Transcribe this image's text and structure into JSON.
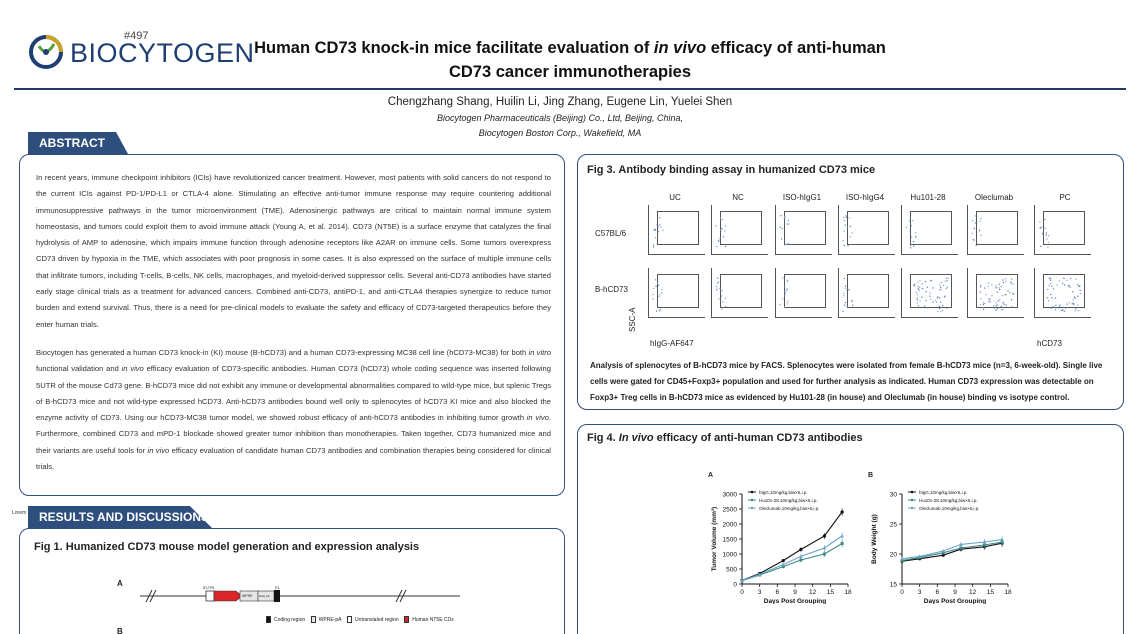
{
  "header": {
    "poster_number": "#497",
    "logo_text": "BIOCYTOGEN",
    "title_line1_a": "Human CD73 knock-in mice facilitate evaluation of ",
    "title_line1_italic": "in vivo",
    "title_line1_b": " efficacy of anti-human",
    "title_line2": "CD73 cancer immunotherapies",
    "authors": "Chengzhang Shang, Huilin Li, Jing Zhang, Eugene Lin, Yuelei Shen",
    "affiliation1": "Biocytogen Pharmaceuticals (Beijing) Co., Ltd, Beijing, China,",
    "affiliation2": "Biocytogen Boston Corp., Wakefield, MA"
  },
  "abstract": {
    "tab_label": "ABSTRACT",
    "p1_a": "In recent years, immune checkpoint inhibitors (ICIs) have revolutionized cancer treatment. However, most patients with solid cancers do not respond to the current ICIs against PD-1/PD-L1 or CTLA-4 alone. Stimulating an effective anti-tumor immune response may require countering additional immunosuppressive pathways in the tumor microenvironment (TME). Adenosinergic pathways are critical to maintain normal immune system homeostasis, and tumors could exploit them to avoid immune attack (Young A, et al. 2014). CD73 (NT5E) is a surface enzyme that catalyzes the final hydrolysis of AMP to adenosine, which impairs immune function through adenosine receptors like A2AR on immune cells. Some tumors overexpress CD73 driven by hypoxia in the TME, which associates with poor prognosis in some cases. It is also expressed on the surface of multiple immune cells that infiltrate tumors, including T-cells, B-cells, NK cells, macrophages, and myeloid-derived suppressor cells. Several anti-CD73 antibodies have started early stage clinical trials as a treatment for advanced cancers. Combined anti-CD73, antiPD-1, and anti-CTLA4 therapies synergize to reduce tumor burden and extend survival. Thus, there is a need for pre-clinical models to evaluate the safety and efficacy of CD73-targeted therapeutics before they enter human trials.",
    "p2_a": "Biocytogen has generated a human CD73 knock-in (KI) mouse (B-hCD73) and a human CD73-expressing MC38 cell line (hCD73-MC38) for both ",
    "p2_i1": "in vitro",
    "p2_b": " functional validation and ",
    "p2_i2": "in vivo",
    "p2_c": " efficacy evaluation of CD73-specific antibodies. Human CD73 (hCD73) whole coding sequence was inserted following 5UTR of the mouse Cd73 gene. B-hCD73 mice did not exhibit any immune or developmental abnormalities compared to wild-type mice, but splenic Tregs of B-hCD73 mice and not wild-type expressed hCD73. Anti-hCD73 antibodies bound well only to splenocytes of hCD73 KI mice and also blocked the enzyme activity of CD73. Using our hCD73-MC38 tumor model, we showed robust efficacy of anti-hCD73 antibodies in inhibiting tumor growth ",
    "p2_i3": "in vivo",
    "p2_d": ". Furthermore, combined CD73 and mPD-1 blockade showed greater tumor inhibition than monotherapies. Taken together, CD73 humanized mice and their variants are useful tools for ",
    "p2_i4": "in vivo",
    "p2_e": " efficacy evaluation of candidate human CD73 antibodies and combination therapies being considered for clinical trials."
  },
  "results": {
    "tab_label": "RESULTS AND DISCUSSIONS",
    "stray_text": "Lorem"
  },
  "fig1": {
    "title": "Fig 1. Humanized CD73 mouse model generation and expression analysis",
    "panel_a": "A",
    "panel_b": "B",
    "labels": {
      "utr": "5'UTR",
      "e1": "E1",
      "wpre": "WPRE",
      "hgh": "hGH pA"
    },
    "legend": [
      "Coding region",
      "WPRE-pA",
      "Untranslated region",
      "Human NT5E CDs"
    ]
  },
  "fig3": {
    "title": "Fig 3. Antibody binding assay in humanized CD73 mice",
    "columns": [
      "UC",
      "NC",
      "ISO-hIgG1",
      "ISO-hIgG4",
      "Hu101-28",
      "Oleclumab",
      "PC"
    ],
    "rows": [
      "C57BL/6",
      "B-hCD73"
    ],
    "y_axis": "SSC-A",
    "x_axis_left": "hIgG-AF647",
    "x_axis_right": "hCD73",
    "caption": "Analysis of splenocytes of B-hCD73 mice by FACS. Splenocytes were isolated from female B-hCD73 mice (n=3, 6-week-old). Single live cells were gated for CD45+Foxp3+ population and used for further analysis as indicated. Human CD73 expression was detectable on Foxp3+ Treg cells in B-hCD73 mice as evidenced by Hu101-28 (in house) and Oleclumab (in house) binding vs isotype control."
  },
  "fig4": {
    "title_a": "Fig 4. ",
    "title_italic": "In vivo",
    "title_b": " efficacy of anti-human CD73 antibodies",
    "colors": {
      "higg": "#111111",
      "hu101": "#3d8a7e",
      "olec": "#6aa3c9"
    }
  },
  "chart_data": [
    {
      "type": "line",
      "panel": "A",
      "xlabel": "Days Post Grouping",
      "ylabel": "Tumor Volume (mm³)",
      "x": [
        0,
        3,
        7,
        10,
        14,
        17
      ],
      "xticks": [
        0,
        3,
        6,
        9,
        12,
        15,
        18
      ],
      "yticks": [
        0,
        500,
        1000,
        1500,
        2000,
        2500,
        3000
      ],
      "xlim": [
        0,
        18
      ],
      "ylim": [
        0,
        3000
      ],
      "series": [
        {
          "name": "hIgG,10mg/kg,biw×6,i.p.",
          "values": [
            120,
            350,
            780,
            1150,
            1600,
            2400
          ]
        },
        {
          "name": "Hu101-28,10mg/kg,biw×6,i.p.",
          "values": [
            110,
            300,
            580,
            800,
            1000,
            1350
          ]
        },
        {
          "name": "Oleclumab,10mg/kg,biw×6,i.p.",
          "values": [
            115,
            320,
            650,
            920,
            1200,
            1600
          ]
        }
      ]
    },
    {
      "type": "line",
      "panel": "B",
      "xlabel": "Days Post Grouping",
      "ylabel": "Body Weight (g)",
      "x": [
        0,
        3,
        7,
        10,
        14,
        17
      ],
      "xticks": [
        0,
        3,
        6,
        9,
        12,
        15,
        18
      ],
      "yticks": [
        15,
        20,
        25,
        30
      ],
      "xlim": [
        0,
        18
      ],
      "ylim": [
        15,
        30
      ],
      "series": [
        {
          "name": "hIgG,10mg/kg,biw×6,i.p.",
          "values": [
            18.8,
            19.2,
            19.8,
            20.8,
            21.2,
            21.8
          ]
        },
        {
          "name": "Hu101-28,10mg/kg,biw×6,i.p.",
          "values": [
            18.9,
            19.4,
            20.2,
            21.0,
            21.5,
            22.0
          ]
        },
        {
          "name": "Oleclumab,10mg/kg,biw×6,i.p.",
          "values": [
            19.2,
            19.6,
            20.5,
            21.6,
            22.0,
            22.4
          ]
        }
      ]
    }
  ]
}
